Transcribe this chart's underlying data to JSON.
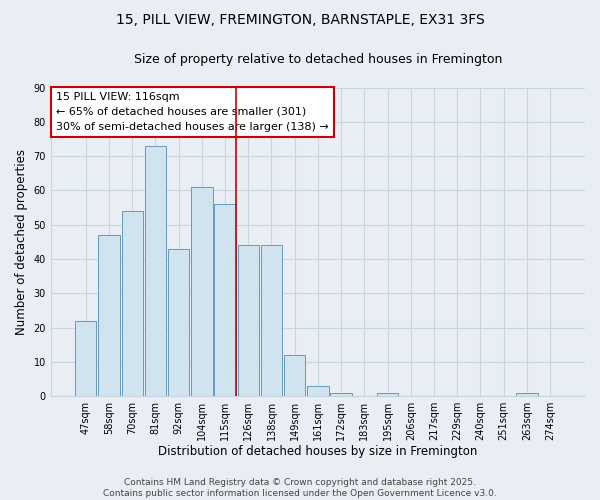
{
  "title": "15, PILL VIEW, FREMINGTON, BARNSTAPLE, EX31 3FS",
  "subtitle": "Size of property relative to detached houses in Fremington",
  "xlabel": "Distribution of detached houses by size in Fremington",
  "ylabel": "Number of detached properties",
  "categories": [
    "47sqm",
    "58sqm",
    "70sqm",
    "81sqm",
    "92sqm",
    "104sqm",
    "115sqm",
    "126sqm",
    "138sqm",
    "149sqm",
    "161sqm",
    "172sqm",
    "183sqm",
    "195sqm",
    "206sqm",
    "217sqm",
    "229sqm",
    "240sqm",
    "251sqm",
    "263sqm",
    "274sqm"
  ],
  "values": [
    22,
    47,
    54,
    73,
    43,
    61,
    56,
    44,
    44,
    12,
    3,
    1,
    0,
    1,
    0,
    0,
    0,
    0,
    0,
    1,
    0
  ],
  "bar_color": "#d0e4f0",
  "bar_edge_color": "#6699bb",
  "vline_x_index": 6,
  "vline_color": "#cc0000",
  "annotation_box_text": "15 PILL VIEW: 116sqm\n← 65% of detached houses are smaller (301)\n30% of semi-detached houses are larger (138) →",
  "annotation_box_color": "#cc0000",
  "ylim": [
    0,
    90
  ],
  "yticks": [
    0,
    10,
    20,
    30,
    40,
    50,
    60,
    70,
    80,
    90
  ],
  "background_color": "#e8eef4",
  "grid_color": "#c8d4de",
  "footer_line1": "Contains HM Land Registry data © Crown copyright and database right 2025.",
  "footer_line2": "Contains public sector information licensed under the Open Government Licence v3.0.",
  "title_fontsize": 10,
  "subtitle_fontsize": 9,
  "axis_label_fontsize": 8.5,
  "tick_fontsize": 7,
  "annotation_fontsize": 8,
  "footer_fontsize": 6.5
}
